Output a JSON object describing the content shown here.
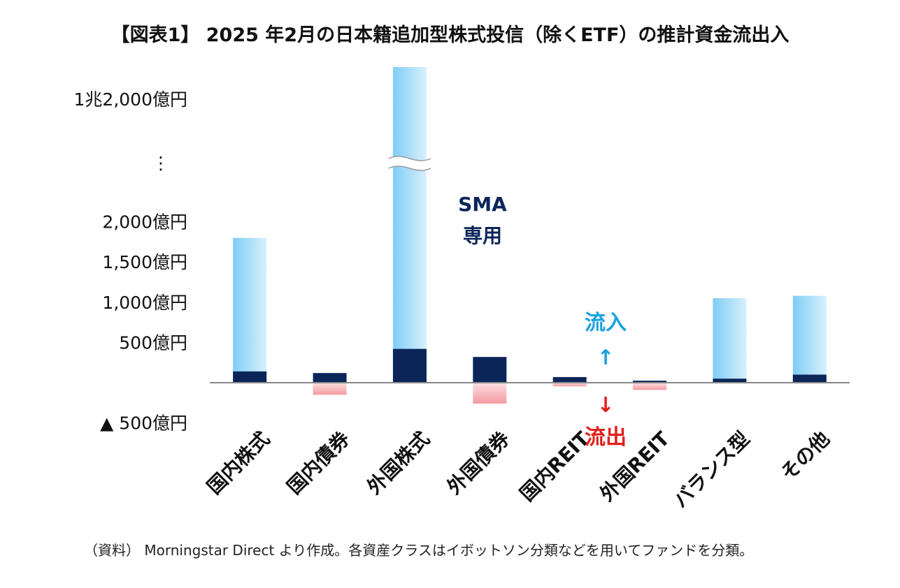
{
  "title": "【図表1】 2025 年2月の日本籍追加型株式投信（除くETF）の推計資金流出入",
  "source": "（資料） Morningstar Direct より作成。各資産クラスはイボットソン分類などを用いてファンドを分類。",
  "colors": {
    "inflow": "#7fcdf5",
    "sma": "#0b2559",
    "outflow": "#f49aa0",
    "inflow_label": "#1aa3e0",
    "outflow_label": "#e0201c",
    "axis": "#888888"
  },
  "chart_data": {
    "type": "bar",
    "title": "【図表1】 2025 年2月の日本籍追加型株式投信（除くETF）の推計資金流出入",
    "ylabel": "億円",
    "ylim": [
      -500,
      2200
    ],
    "y_break": {
      "shown_top_value": 12000,
      "label": "1兆2,000億円",
      "ellipsis": "⋮"
    },
    "yticks": [
      {
        "value": 12000,
        "label": "1兆2,000億円"
      },
      {
        "value": 2000,
        "label": "2,000億円"
      },
      {
        "value": 1500,
        "label": "1,500億円"
      },
      {
        "value": 1000,
        "label": "1,000億円"
      },
      {
        "value": 500,
        "label": "500億円"
      },
      {
        "value": -500,
        "label": "▲ 500億円"
      }
    ],
    "categories": [
      "国内株式",
      "国内債券",
      "外国株式",
      "外国債券",
      "国内REIT",
      "外国REIT",
      "バランス型",
      "その他"
    ],
    "series": [
      {
        "name": "流入",
        "values": [
          1800,
          0,
          12500,
          0,
          0,
          0,
          1050,
          1080
        ]
      },
      {
        "name": "SMA専用",
        "values": [
          140,
          120,
          420,
          320,
          70,
          25,
          50,
          100
        ]
      },
      {
        "name": "流出",
        "values": [
          0,
          -150,
          0,
          -260,
          -45,
          -90,
          0,
          0
        ]
      }
    ],
    "annotations": {
      "sma": [
        "SMA",
        "専用"
      ],
      "inflow": "流入",
      "inflow_arrow": "↑",
      "outflow": "流出",
      "outflow_arrow": "↓"
    }
  }
}
